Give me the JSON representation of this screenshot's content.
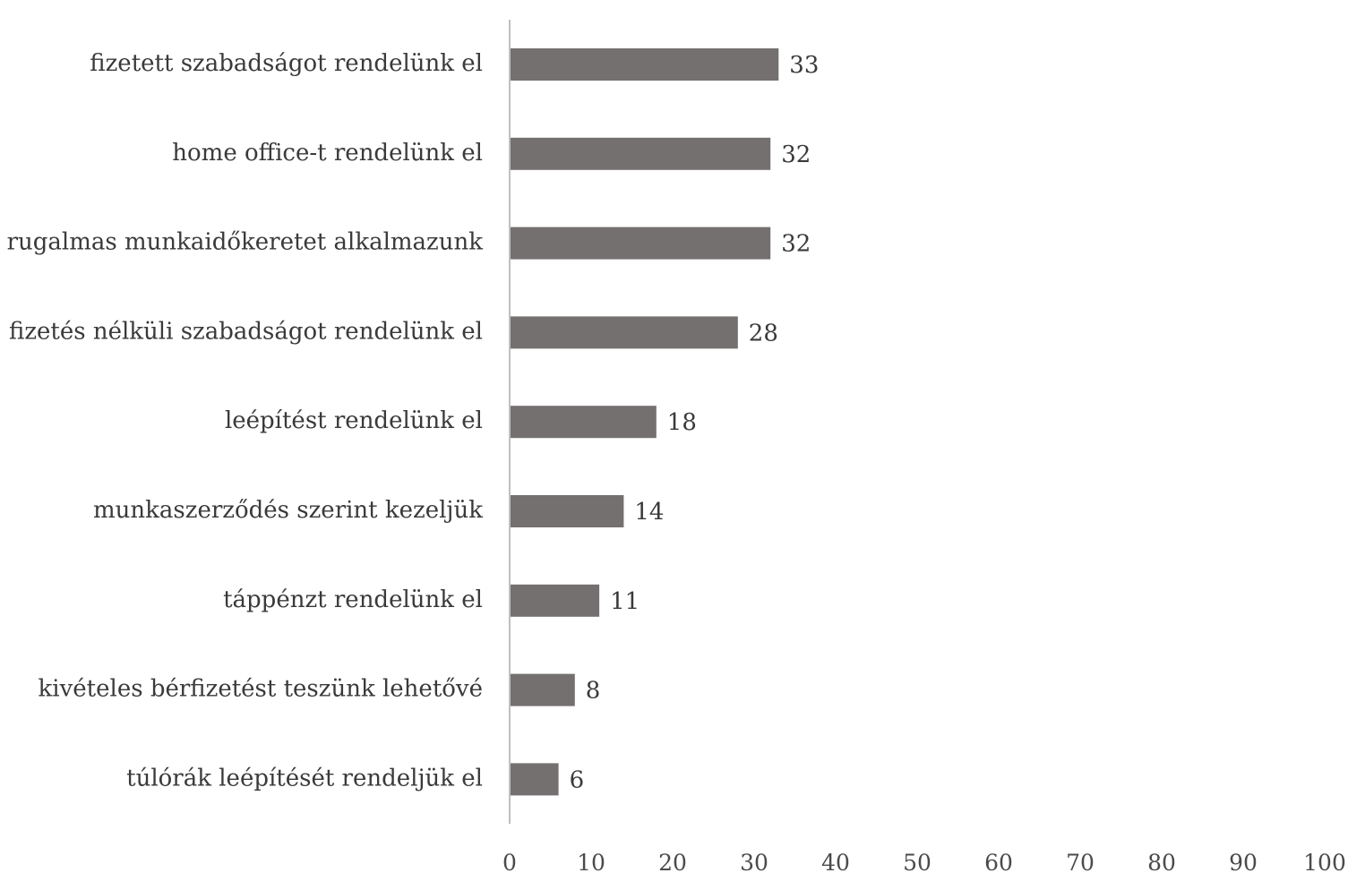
{
  "chart_data": {
    "type": "bar",
    "orientation": "horizontal",
    "categories": [
      "fizetett szabadságot rendelünk el",
      "home office-t rendelünk el",
      "rugalmas munkaidőkeretet alkalmazunk",
      "fizetés nélküli szabadságot rendelünk el",
      "leépítést rendelünk el",
      "munkaszerződés szerint kezeljük",
      "táppénzt rendelünk el",
      "kivételes bérfizetést teszünk lehetővé",
      "túlórák leépítését rendeljük el"
    ],
    "values": [
      33,
      32,
      32,
      28,
      18,
      14,
      11,
      8,
      6
    ],
    "data_labels": [
      "33",
      "32",
      "32",
      "28",
      "18",
      "14",
      "11",
      "8",
      "6"
    ],
    "xlim": [
      0,
      100
    ],
    "x_ticks": [
      "0",
      "10",
      "20",
      "30",
      "40",
      "50",
      "60",
      "70",
      "80",
      "90",
      "100"
    ],
    "title": "",
    "xlabel": "",
    "ylabel": "",
    "grid": false,
    "legend": "none",
    "bar_color": "#757070",
    "axis_color": "#bfbfbf"
  }
}
